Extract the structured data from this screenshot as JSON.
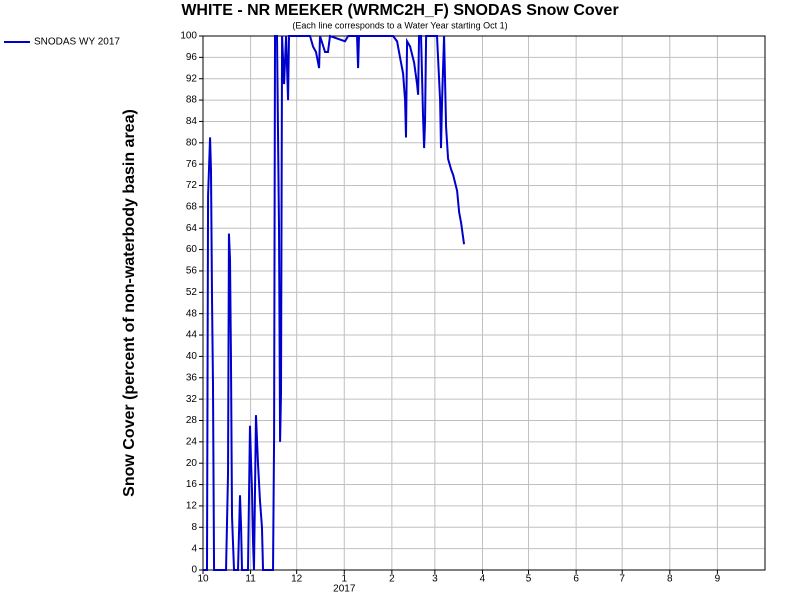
{
  "chart_data": {
    "type": "line",
    "title": "WHITE - NR MEEKER (WRMC2H_F) SNODAS Snow Cover",
    "subtitle": "(Each line corresponds to a Water Year starting Oct 1)",
    "y_label": "Snow Cover (percent of non-waterbody basin area)",
    "x_annotation": "2017",
    "x": [
      0,
      2.6,
      3.3,
      4.6,
      5.2,
      5.9,
      6.5,
      7.2,
      15,
      16.3,
      16.9,
      17.6,
      18.2,
      18.9,
      20.2,
      22.8,
      24.1,
      24.8,
      25.4,
      29.3,
      30.6,
      31.3,
      31.9,
      32.6,
      33.2,
      34.5,
      35.8,
      37.1,
      38.4,
      39.1,
      45.6,
      46.3,
      46.9,
      48.2,
      49.5,
      50.2,
      50.8,
      51.5,
      52.8,
      54.1,
      55.4,
      56,
      57.3,
      69.7,
      71.7,
      73.6,
      75.6,
      76.2,
      79.5,
      81.4,
      82.7,
      92.5,
      94.5,
      100.3,
      101,
      101.6,
      123.8,
      126.4,
      128.3,
      130.3,
      131.6,
      132.2,
      132.9,
      134.9,
      137.5,
      139.4,
      140.1,
      140.7,
      142,
      143.3,
      144,
      144.6,
      145.3,
      152.4,
      154.4,
      155,
      155.7,
      157,
      158.3,
      159.6,
      161.6,
      162.9,
      165.5,
      166.8,
      168.1,
      170
    ],
    "series": [
      {
        "name": "SNODAS WY 2017",
        "color": "#0000cc",
        "values": [
          0,
          0,
          70,
          81,
          75,
          50,
          35,
          0,
          0,
          18,
          63,
          58,
          40,
          10,
          0,
          0,
          14,
          8,
          0,
          0,
          27,
          20,
          15,
          5,
          0,
          29,
          20,
          13,
          8,
          0,
          0,
          25,
          100,
          100,
          64,
          24,
          33,
          100,
          91,
          100,
          88,
          100,
          100,
          100,
          98,
          97,
          94,
          100,
          97,
          97,
          100,
          99,
          100,
          100,
          94,
          100,
          100,
          99,
          96,
          93,
          88,
          81,
          99,
          98,
          95,
          91,
          89,
          100,
          100,
          85,
          79,
          84,
          100,
          100,
          88,
          79,
          88,
          100,
          83,
          77,
          75,
          74,
          71,
          67,
          65,
          61
        ]
      }
    ],
    "xlim": [
      0,
      366
    ],
    "xticks": [
      {
        "value": 0,
        "label": "10"
      },
      {
        "value": 31,
        "label": "11"
      },
      {
        "value": 61,
        "label": "12"
      },
      {
        "value": 92,
        "label": "1"
      },
      {
        "value": 123,
        "label": "2"
      },
      {
        "value": 151,
        "label": "3"
      },
      {
        "value": 182,
        "label": "4"
      },
      {
        "value": 212,
        "label": "5"
      },
      {
        "value": 243,
        "label": "6"
      },
      {
        "value": 273,
        "label": "7"
      },
      {
        "value": 304,
        "label": "8"
      },
      {
        "value": 335,
        "label": "9"
      }
    ],
    "ylim": [
      0,
      100
    ],
    "yticks": [
      0,
      4,
      8,
      12,
      16,
      20,
      24,
      28,
      32,
      36,
      40,
      44,
      48,
      52,
      56,
      60,
      64,
      68,
      72,
      76,
      80,
      84,
      88,
      92,
      96,
      100
    ],
    "grid": true
  }
}
